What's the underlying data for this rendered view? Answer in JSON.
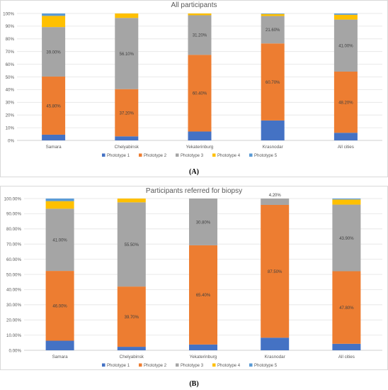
{
  "chart_data": [
    {
      "type": "bar",
      "stacked": true,
      "title": "All participants",
      "panel_label": "(A)",
      "categories": [
        "Samara",
        "Chelyabinsk",
        "Yekaterinburg",
        "Krasnodar",
        "All cities"
      ],
      "series": [
        {
          "name": "Phototype 1",
          "color": "#4472c4",
          "values": [
            4.5,
            3.2,
            7.0,
            15.7,
            6.0
          ]
        },
        {
          "name": "Phototype 2",
          "color": "#ed7d31",
          "values": [
            45.8,
            37.2,
            60.4,
            60.7,
            48.2
          ]
        },
        {
          "name": "Phototype 3",
          "color": "#a5a5a5",
          "values": [
            39.0,
            56.1,
            31.2,
            21.6,
            41.0
          ]
        },
        {
          "name": "Phototype 4",
          "color": "#ffc000",
          "values": [
            8.8,
            3.5,
            1.4,
            1.6,
            3.8
          ]
        },
        {
          "name": "Phototype 5",
          "color": "#5b9bd5",
          "values": [
            1.9,
            0.0,
            0.0,
            0.4,
            1.0
          ]
        }
      ],
      "data_labels": {
        "Phototype 2": [
          "45.80%",
          "37.20%",
          "60.40%",
          "60.70%",
          "48.20%"
        ],
        "Phototype 3": [
          "39.00%",
          "56.10%",
          "31.20%",
          "21.60%",
          "41.00%"
        ]
      },
      "yticks": [
        "0%",
        "10%",
        "20%",
        "30%",
        "40%",
        "50%",
        "60%",
        "70%",
        "80%",
        "90%",
        "100%"
      ],
      "ylim": [
        0,
        100
      ],
      "grid": true,
      "legend": "bottom"
    },
    {
      "type": "bar",
      "stacked": true,
      "title": "Participants referred for biopsy",
      "panel_label": "(B)",
      "categories": [
        "Samara",
        "Chelyabinsk",
        "Yekaterinburg",
        "Krasnodar",
        "All cities"
      ],
      "series": [
        {
          "name": "Phototype 1",
          "color": "#4472c4",
          "values": [
            6.3,
            2.3,
            3.8,
            8.3,
            4.3
          ]
        },
        {
          "name": "Phototype 2",
          "color": "#ed7d31",
          "values": [
            46.0,
            39.7,
            65.4,
            87.5,
            47.8
          ]
        },
        {
          "name": "Phototype 3",
          "color": "#a5a5a5",
          "values": [
            41.0,
            55.5,
            30.8,
            4.2,
            43.9
          ]
        },
        {
          "name": "Phototype 4",
          "color": "#ffc000",
          "values": [
            5.0,
            2.5,
            0.0,
            0.0,
            3.4
          ]
        },
        {
          "name": "Phototype 5",
          "color": "#5b9bd5",
          "values": [
            1.7,
            0.0,
            0.0,
            0.0,
            0.6
          ]
        }
      ],
      "data_labels": {
        "Phototype 2": [
          "46.00%",
          "39.70%",
          "65.40%",
          "87.50%",
          "47.80%"
        ],
        "Phototype 3": [
          "41.00%",
          "55.50%",
          "30.80%",
          "4.20%",
          "43.90%"
        ]
      },
      "yticks": [
        "0.00%",
        "10.00%",
        "20.00%",
        "30.00%",
        "40.00%",
        "50.00%",
        "60.00%",
        "70.00%",
        "80.00%",
        "90.00%",
        "100.00%"
      ],
      "ylim": [
        0,
        100
      ],
      "grid": true,
      "legend": "bottom"
    }
  ]
}
